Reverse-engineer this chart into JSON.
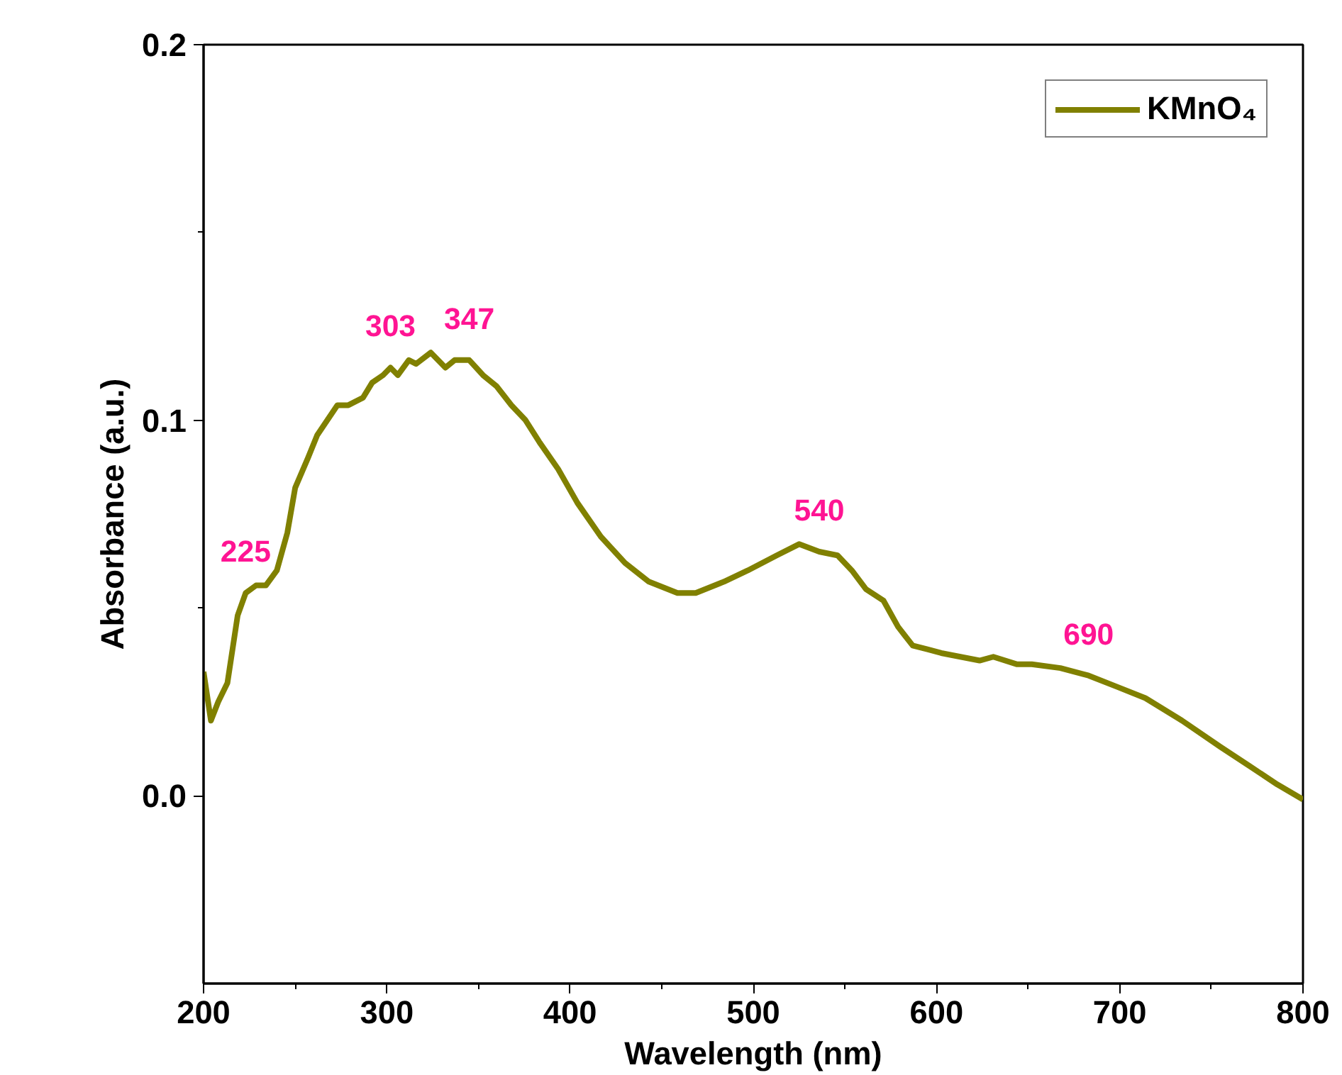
{
  "chart_data": {
    "type": "line",
    "xlabel": "Wavelength (nm)",
    "ylabel": "Absorbance (a.u.)",
    "xlim": [
      200,
      800
    ],
    "ylim": [
      -0.05,
      0.2
    ],
    "xticks": [
      200,
      300,
      400,
      500,
      600,
      700,
      800
    ],
    "yticks": [
      {
        "value": 0,
        "label": "0.0"
      },
      {
        "value": 0.1,
        "label": "0.1"
      },
      {
        "value": 0.2,
        "label": "0.2"
      }
    ],
    "grid": false,
    "legend": "top right",
    "marker": "none",
    "line_style": "solid",
    "series": [
      {
        "name": "KMnO₄",
        "color": "#808000",
        "x": [
          200,
          204,
          208,
          213,
          218.6,
          223,
          228.6,
          234,
          240,
          245.7,
          250,
          257,
          262,
          273,
          279,
          287,
          292,
          298,
          302,
          306,
          312,
          316,
          324,
          332,
          337,
          345,
          352.5,
          360,
          368,
          375.7,
          383.5,
          393.5,
          404,
          416.8,
          430,
          443,
          458.6,
          468.6,
          484,
          497,
          512.8,
          525,
          536,
          546,
          553.8,
          561.5,
          571,
          579,
          587,
          595,
          602.6,
          623.5,
          631,
          644,
          652,
          667.6,
          683,
          698.6,
          714,
          734,
          755,
          770.6,
          786,
          800
        ],
        "values": [
          0.033,
          0.02,
          0.025,
          0.03,
          0.048,
          0.054,
          0.056,
          0.056,
          0.06,
          0.07,
          0.082,
          0.09,
          0.096,
          0.104,
          0.104,
          0.106,
          0.11,
          0.112,
          0.114,
          0.112,
          0.116,
          0.115,
          0.118,
          0.114,
          0.116,
          0.116,
          0.112,
          0.109,
          0.104,
          0.1,
          0.094,
          0.087,
          0.078,
          0.069,
          0.062,
          0.057,
          0.054,
          0.054,
          0.057,
          0.06,
          0.064,
          0.067,
          0.065,
          0.064,
          0.06,
          0.055,
          0.052,
          0.045,
          0.04,
          0.039,
          0.038,
          0.036,
          0.037,
          0.035,
          0.035,
          0.034,
          0.032,
          0.029,
          0.026,
          0.02,
          0.013,
          0.008,
          0.003,
          -0.001
        ]
      }
    ],
    "annotations": [
      {
        "text": "225",
        "x": 223,
        "y": 0.054
      },
      {
        "text": "303",
        "x": 302,
        "y": 0.114
      },
      {
        "text": "347",
        "x": 345,
        "y": 0.116
      },
      {
        "text": "540",
        "x": 536,
        "y": 0.065
      },
      {
        "text": "690",
        "x": 683,
        "y": 0.032
      }
    ]
  }
}
